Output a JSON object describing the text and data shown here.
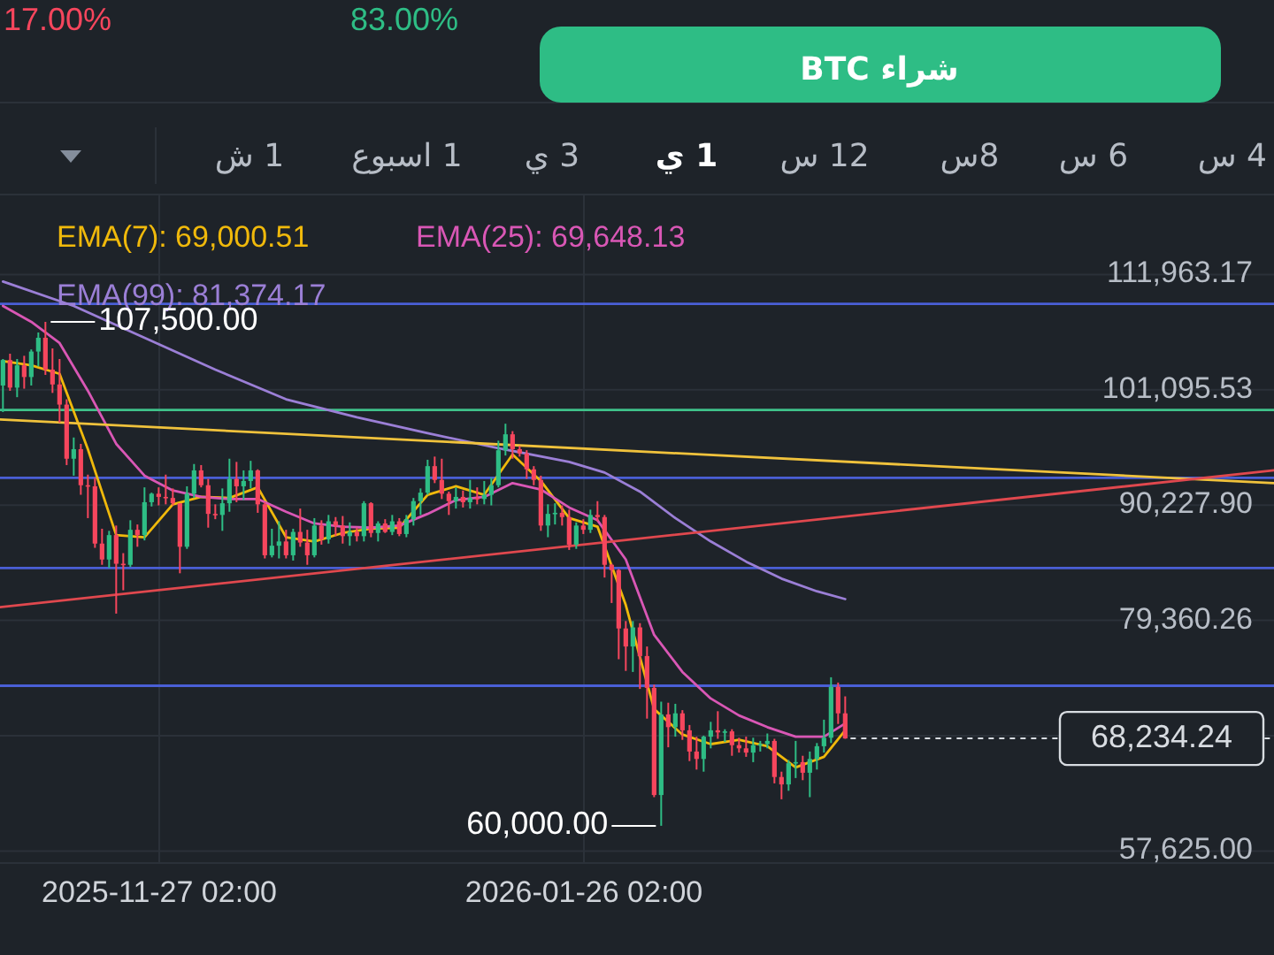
{
  "chart_data": {
    "type": "candlestick",
    "x": [
      "2025-11-05",
      "2025-11-06",
      "2025-11-07",
      "2025-11-08",
      "2025-11-09",
      "2025-11-10",
      "2025-11-11",
      "2025-11-12",
      "2025-11-13",
      "2025-11-14",
      "2025-11-15",
      "2025-11-16",
      "2025-11-17",
      "2025-11-18",
      "2025-11-19",
      "2025-11-20",
      "2025-11-21",
      "2025-11-22",
      "2025-11-23",
      "2025-11-24",
      "2025-11-25",
      "2025-11-26",
      "2025-11-27",
      "2025-11-28",
      "2025-11-29",
      "2025-11-30",
      "2025-12-01",
      "2025-12-02",
      "2025-12-03",
      "2025-12-04",
      "2025-12-05",
      "2025-12-06",
      "2025-12-07",
      "2025-12-08",
      "2025-12-09",
      "2025-12-10",
      "2025-12-11",
      "2025-12-12",
      "2025-12-13",
      "2025-12-14",
      "2025-12-15",
      "2025-12-16",
      "2025-12-17",
      "2025-12-18",
      "2025-12-19",
      "2025-12-20",
      "2025-12-21",
      "2025-12-22",
      "2025-12-23",
      "2025-12-24",
      "2025-12-25",
      "2025-12-26",
      "2025-12-27",
      "2025-12-28",
      "2025-12-29",
      "2025-12-30",
      "2025-12-31",
      "2026-01-01",
      "2026-01-02",
      "2026-01-03",
      "2026-01-04",
      "2026-01-05",
      "2026-01-06",
      "2026-01-07",
      "2026-01-08",
      "2026-01-09",
      "2026-01-10",
      "2026-01-11",
      "2026-01-12",
      "2026-01-13",
      "2026-01-14",
      "2026-01-15",
      "2026-01-16",
      "2026-01-17",
      "2026-01-18",
      "2026-01-19",
      "2026-01-20",
      "2026-01-21",
      "2026-01-22",
      "2026-01-23",
      "2026-01-24",
      "2026-01-25",
      "2026-01-26",
      "2026-01-27",
      "2026-01-28",
      "2026-01-29",
      "2026-01-30",
      "2026-01-31",
      "2026-02-01",
      "2026-02-02",
      "2026-02-03",
      "2026-02-04",
      "2026-02-05",
      "2026-02-06",
      "2026-02-07",
      "2026-02-08",
      "2026-02-09",
      "2026-02-10",
      "2026-02-11",
      "2026-02-12",
      "2026-02-13",
      "2026-02-14",
      "2026-02-15",
      "2026-02-16",
      "2026-02-17",
      "2026-02-18",
      "2026-02-19",
      "2026-02-20",
      "2026-02-21",
      "2026-02-22",
      "2026-02-23",
      "2026-02-24",
      "2026-02-25",
      "2026-02-26",
      "2026-02-27",
      "2026-02-28",
      "2026-03-01",
      "2026-03-02",
      "2026-03-03",
      "2026-03-04"
    ],
    "ohlc": [
      [
        101500,
        104000,
        99000,
        103900
      ],
      [
        103900,
        104500,
        101000,
        101300
      ],
      [
        101300,
        104000,
        100400,
        103400
      ],
      [
        103400,
        104300,
        101200,
        102300
      ],
      [
        102300,
        104900,
        101500,
        104700
      ],
      [
        104700,
        106500,
        103300,
        106000
      ],
      [
        106000,
        107500,
        102500,
        103000
      ],
      [
        103000,
        105000,
        100800,
        101600
      ],
      [
        101600,
        104000,
        98000,
        99700
      ],
      [
        99700,
        100200,
        94000,
        94600
      ],
      [
        94600,
        96600,
        93000,
        95500
      ],
      [
        95500,
        96000,
        91200,
        92100
      ],
      [
        92100,
        93100,
        89000,
        92000
      ],
      [
        92000,
        92800,
        86200,
        86600
      ],
      [
        86600,
        88000,
        84600,
        85100
      ],
      [
        85100,
        87800,
        84300,
        87400
      ],
      [
        87400,
        88300,
        80000,
        84700
      ],
      [
        84700,
        85700,
        82200,
        84600
      ],
      [
        84600,
        88800,
        84400,
        87900
      ],
      [
        87900,
        88400,
        86300,
        87400
      ],
      [
        87400,
        91900,
        86900,
        90500
      ],
      [
        90500,
        91400,
        90100,
        91300
      ],
      [
        91300,
        91900,
        90200,
        91000
      ],
      [
        91000,
        93100,
        90300,
        90900
      ],
      [
        90900,
        91800,
        90200,
        90400
      ],
      [
        90400,
        90400,
        83800,
        86300
      ],
      [
        86300,
        92000,
        86100,
        91300
      ],
      [
        91300,
        94100,
        90900,
        93500
      ],
      [
        93500,
        94000,
        91900,
        92100
      ],
      [
        92100,
        92700,
        88100,
        89400
      ],
      [
        89400,
        90300,
        88900,
        89300
      ],
      [
        89300,
        91800,
        87800,
        90400
      ],
      [
        90400,
        94600,
        89600,
        92700
      ],
      [
        92700,
        94300,
        90500,
        92000
      ],
      [
        92000,
        93500,
        90700,
        92500
      ],
      [
        92500,
        94400,
        91800,
        93500
      ],
      [
        93500,
        93600,
        89500,
        90300
      ],
      [
        90300,
        90500,
        85200,
        85500
      ],
      [
        85500,
        88000,
        85300,
        86400
      ],
      [
        86400,
        88700,
        85200,
        86800
      ],
      [
        86800,
        87900,
        85200,
        85500
      ],
      [
        85500,
        88000,
        85000,
        87700
      ],
      [
        87700,
        89900,
        86300,
        86700
      ],
      [
        86700,
        87900,
        84600,
        85500
      ],
      [
        85500,
        89000,
        85300,
        88300
      ],
      [
        88300,
        88800,
        86500,
        87000
      ],
      [
        87000,
        89300,
        86600,
        88700
      ],
      [
        88700,
        89100,
        87300,
        88300
      ],
      [
        88300,
        89200,
        86600,
        87300
      ],
      [
        87300,
        88600,
        86400,
        87700
      ],
      [
        87700,
        88100,
        86800,
        87300
      ],
      [
        87300,
        90600,
        86800,
        90400
      ],
      [
        90400,
        90500,
        87200,
        87600
      ],
      [
        87600,
        88700,
        86800,
        88500
      ],
      [
        88500,
        88900,
        87600,
        87700
      ],
      [
        87700,
        89300,
        87400,
        88700
      ],
      [
        88700,
        89000,
        87300,
        87500
      ],
      [
        87500,
        89300,
        87200,
        88900
      ],
      [
        88900,
        90900,
        88300,
        90600
      ],
      [
        90600,
        91800,
        89300,
        91400
      ],
      [
        91400,
        94500,
        91200,
        93900
      ],
      [
        93900,
        94800,
        92300,
        92600
      ],
      [
        92600,
        94600,
        90800,
        91300
      ],
      [
        91300,
        91500,
        89300,
        90600
      ],
      [
        90600,
        91900,
        89900,
        91000
      ],
      [
        91000,
        91600,
        90000,
        90500
      ],
      [
        90500,
        92600,
        89900,
        90900
      ],
      [
        90900,
        91900,
        90300,
        90800
      ],
      [
        90800,
        92500,
        90300,
        91200
      ],
      [
        91200,
        92800,
        90200,
        92100
      ],
      [
        92100,
        96300,
        91900,
        95400
      ],
      [
        95400,
        97900,
        94900,
        96900
      ],
      [
        96900,
        97200,
        94600,
        95500
      ],
      [
        95500,
        95800,
        94800,
        95100
      ],
      [
        95100,
        95400,
        92700,
        93600
      ],
      [
        93600,
        93900,
        92100,
        92600
      ],
      [
        92600,
        93000,
        87800,
        88300
      ],
      [
        88300,
        90300,
        87200,
        89400
      ],
      [
        89400,
        90400,
        88400,
        89500
      ],
      [
        89500,
        90200,
        88300,
        89100
      ],
      [
        89100,
        89800,
        86000,
        86500
      ],
      [
        86500,
        88600,
        86100,
        88300
      ],
      [
        88300,
        88900,
        87500,
        87900
      ],
      [
        87900,
        89800,
        87600,
        89300
      ],
      [
        89300,
        90600,
        88700,
        89100
      ],
      [
        89100,
        89300,
        83400,
        84600
      ],
      [
        84600,
        84700,
        81000,
        84100
      ],
      [
        84100,
        84200,
        75700,
        78600
      ],
      [
        78600,
        79300,
        74600,
        76900
      ],
      [
        76900,
        79300,
        74500,
        78700
      ],
      [
        78700,
        79100,
        72900,
        76000
      ],
      [
        76000,
        76900,
        70100,
        73000
      ],
      [
        73000,
        73300,
        62700,
        62900
      ],
      [
        62900,
        71700,
        60000,
        70500
      ],
      [
        70500,
        71600,
        67400,
        69300
      ],
      [
        69300,
        71500,
        68400,
        70600
      ],
      [
        70600,
        70900,
        68100,
        69000
      ],
      [
        69000,
        69500,
        66100,
        67000
      ],
      [
        67000,
        68400,
        65300,
        66300
      ],
      [
        66300,
        68500,
        65100,
        68400
      ],
      [
        68400,
        69800,
        67300,
        69000
      ],
      [
        69000,
        70800,
        68200,
        68800
      ],
      [
        68800,
        69100,
        67900,
        68900
      ],
      [
        68900,
        69100,
        66600,
        67600
      ],
      [
        67600,
        68300,
        66900,
        67300
      ],
      [
        67300,
        68400,
        66500,
        66900
      ],
      [
        66900,
        68300,
        66000,
        67600
      ],
      [
        67600,
        68000,
        67000,
        67700
      ],
      [
        67700,
        68700,
        67300,
        68000
      ],
      [
        68000,
        68200,
        64000,
        64600
      ],
      [
        64600,
        65100,
        62500,
        63900
      ],
      [
        63900,
        66200,
        63300,
        65900
      ],
      [
        65900,
        68000,
        64500,
        66000
      ],
      [
        66000,
        66600,
        64300,
        65000
      ],
      [
        65000,
        67000,
        62700,
        66300
      ],
      [
        66300,
        67800,
        65300,
        67500
      ],
      [
        67500,
        70000,
        66900,
        68300
      ],
      [
        68300,
        74000,
        67800,
        73100
      ],
      [
        73100,
        73500,
        69600,
        70600
      ],
      [
        70600,
        72200,
        68200,
        68234.24
      ]
    ],
    "colors": [
      "#2ebd85",
      "#f6465d",
      "#2ebd85",
      "#f6465d",
      "#2ebd85",
      "#2ebd85",
      "#f6465d",
      "#f6465d",
      "#f6465d",
      "#f6465d",
      "#2ebd85",
      "#f6465d",
      "#f6465d",
      "#f6465d",
      "#f6465d",
      "#2ebd85",
      "#f6465d",
      "#f6465d",
      "#2ebd85",
      "#f6465d",
      "#2ebd85",
      "#2ebd85",
      "#f6465d",
      "#f6465d",
      "#f6465d",
      "#f6465d",
      "#2ebd85",
      "#2ebd85",
      "#f6465d",
      "#f6465d",
      "#f6465d",
      "#2ebd85",
      "#2ebd85",
      "#f6465d",
      "#2ebd85",
      "#2ebd85",
      "#f6465d",
      "#f6465d",
      "#2ebd85",
      "#2ebd85",
      "#f6465d",
      "#2ebd85",
      "#f6465d",
      "#f6465d",
      "#2ebd85",
      "#f6465d",
      "#2ebd85",
      "#f6465d",
      "#f6465d",
      "#2ebd85",
      "#f6465d",
      "#2ebd85",
      "#f6465d",
      "#2ebd85",
      "#f6465d",
      "#2ebd85",
      "#f6465d",
      "#2ebd85",
      "#2ebd85",
      "#2ebd85",
      "#2ebd85",
      "#f6465d",
      "#f6465d",
      "#f6465d",
      "#2ebd85",
      "#f6465d",
      "#2ebd85",
      "#f6465d",
      "#2ebd85",
      "#2ebd85",
      "#2ebd85",
      "#2ebd85",
      "#f6465d",
      "#f6465d",
      "#f6465d",
      "#f6465d",
      "#f6465d",
      "#2ebd85",
      "#2ebd85",
      "#f6465d",
      "#f6465d",
      "#2ebd85",
      "#f6465d",
      "#2ebd85",
      "#f6465d",
      "#f6465d",
      "#f6465d",
      "#f6465d",
      "#f6465d",
      "#2ebd85",
      "#f6465d",
      "#f6465d",
      "#f6465d",
      "#2ebd85",
      "#f6465d",
      "#2ebd85",
      "#f6465d",
      "#f6465d",
      "#f6465d",
      "#2ebd85",
      "#2ebd85",
      "#f6465d",
      "#2ebd85",
      "#f6465d",
      "#f6465d",
      "#f6465d",
      "#2ebd85",
      "#2ebd85",
      "#2ebd85",
      "#f6465d",
      "#f6465d",
      "#2ebd85",
      "#2ebd85",
      "#f6465d",
      "#2ebd85",
      "#2ebd85",
      "#2ebd85",
      "#2ebd85",
      "#f6465d",
      "#f6465d"
    ],
    "series": [
      {
        "name": "EMA(7): 69,000.51",
        "color": "#f0b90b",
        "type": "line",
        "x": [
          "2025-11-05",
          "2025-11-09",
          "2025-11-13",
          "2025-11-17",
          "2025-11-21",
          "2025-11-25",
          "2025-11-29",
          "2025-12-03",
          "2025-12-07",
          "2025-12-11",
          "2025-12-15",
          "2025-12-19",
          "2025-12-23",
          "2025-12-27",
          "2025-12-31",
          "2026-01-04",
          "2026-01-08",
          "2026-01-12",
          "2026-01-16",
          "2026-01-20",
          "2026-01-24",
          "2026-01-28",
          "2026-02-01",
          "2026-02-05",
          "2026-02-09",
          "2026-02-13",
          "2026-02-17",
          "2026-02-21",
          "2026-02-25",
          "2026-03-01",
          "2026-03-04"
        ],
        "values": [
          103800,
          103400,
          102600,
          95500,
          87400,
          87200,
          90300,
          91000,
          90900,
          91900,
          87200,
          86800,
          87600,
          88000,
          88100,
          91200,
          92000,
          91200,
          95000,
          92500,
          89000,
          88200,
          80800,
          71000,
          68600,
          67700,
          68100,
          67500,
          65500,
          66500,
          69000
        ]
      },
      {
        "name": "EMA(25): 69,648.13",
        "color": "#d957b5",
        "type": "line",
        "x": [
          "2025-11-05",
          "2025-11-09",
          "2025-11-13",
          "2025-11-17",
          "2025-11-21",
          "2025-11-25",
          "2025-11-29",
          "2025-12-03",
          "2025-12-07",
          "2025-12-11",
          "2025-12-15",
          "2025-12-19",
          "2025-12-23",
          "2025-12-27",
          "2025-12-31",
          "2026-01-04",
          "2026-01-08",
          "2026-01-12",
          "2026-01-16",
          "2026-01-20",
          "2026-01-24",
          "2026-01-28",
          "2026-02-01",
          "2026-02-05",
          "2026-02-09",
          "2026-02-13",
          "2026-02-17",
          "2026-02-21",
          "2026-02-25",
          "2026-03-01",
          "2026-03-04"
        ],
        "values": [
          109000,
          107500,
          105500,
          101000,
          96000,
          93000,
          91600,
          91000,
          90800,
          90800,
          89600,
          88500,
          88200,
          88100,
          88300,
          89400,
          90700,
          91000,
          92300,
          91700,
          90000,
          88800,
          85100,
          78000,
          74500,
          72000,
          70400,
          69300,
          68400,
          68400,
          69650
        ]
      },
      {
        "name": "EMA(99): 81,374.17",
        "color": "#9b7fd6",
        "type": "line",
        "x": [
          "2025-11-05",
          "2025-11-15",
          "2025-11-25",
          "2025-12-05",
          "2025-12-15",
          "2025-12-25",
          "2026-01-04",
          "2026-01-14",
          "2026-01-24",
          "2026-01-29",
          "2026-02-03",
          "2026-02-08",
          "2026-02-13",
          "2026-02-18",
          "2026-02-23",
          "2026-02-28",
          "2026-03-04"
        ],
        "values": [
          111300,
          109000,
          106000,
          103000,
          100200,
          98500,
          97000,
          95600,
          94300,
          93300,
          91500,
          89000,
          86800,
          84900,
          83300,
          82100,
          81370
        ]
      },
      {
        "color": "#f0c23c",
        "type": "line",
        "x": [
          "2025-11-04T14:00",
          "2026-05-03T14:00"
        ],
        "values": [
          98300,
          92300
        ]
      },
      {
        "color": "#e0484e",
        "type": "line",
        "x": [
          "2025-11-04T14:00",
          "2026-05-03T14:00"
        ],
        "values": [
          80600,
          93500
        ]
      }
    ],
    "xlim": [
      "2025-11-04T14:00",
      "2026-05-03T14:00"
    ],
    "ylim": [
      56490,
      119500
    ],
    "xticks": [
      {
        "value": "2025-11-27T02:00",
        "label": "2025-11-27 02:00"
      },
      {
        "value": "2026-01-26T02:00",
        "label": "2026-01-26 02:00"
      }
    ],
    "yticks": [
      {
        "value": 111963.17,
        "label": "111,963.17"
      },
      {
        "value": 101095.53,
        "label": "101,095.53"
      },
      {
        "value": 90227.9,
        "label": "90,227.90"
      },
      {
        "value": 79360.26,
        "label": "79,360.26"
      },
      {
        "value": 68492.63,
        "label": null
      },
      {
        "value": 57625,
        "label": "57,625.00"
      }
    ],
    "grid": true,
    "legend": "top left",
    "ref_lines": [
      {
        "axis": "y",
        "value": 109200,
        "color": "#4a5fd6"
      },
      {
        "axis": "y",
        "value": 99200,
        "color": "#3fc28a"
      },
      {
        "axis": "y",
        "value": 92800,
        "color": "#4a5fd6"
      },
      {
        "axis": "y",
        "value": 84300,
        "color": "#4a5fd6"
      },
      {
        "axis": "y",
        "value": 73200,
        "color": "#4a5fd6"
      },
      {
        "axis": "y",
        "value": 68234.24,
        "label": "68,234.24",
        "color": "#d8dce1",
        "line_style": "dashed"
      }
    ],
    "annotations": [
      {
        "text": "107,500.00",
        "x": "2025-11-11",
        "y": 107500
      },
      {
        "text": "60,000.00",
        "x": "2026-02-06",
        "y": 60000
      },
      "17.00%",
      "83.00%",
      "شراء BTC",
      "4 س",
      "6 س",
      "8س",
      "12 س",
      "1 ي",
      "3 ي",
      "1 اسبوع",
      "1 ش"
    ]
  }
}
